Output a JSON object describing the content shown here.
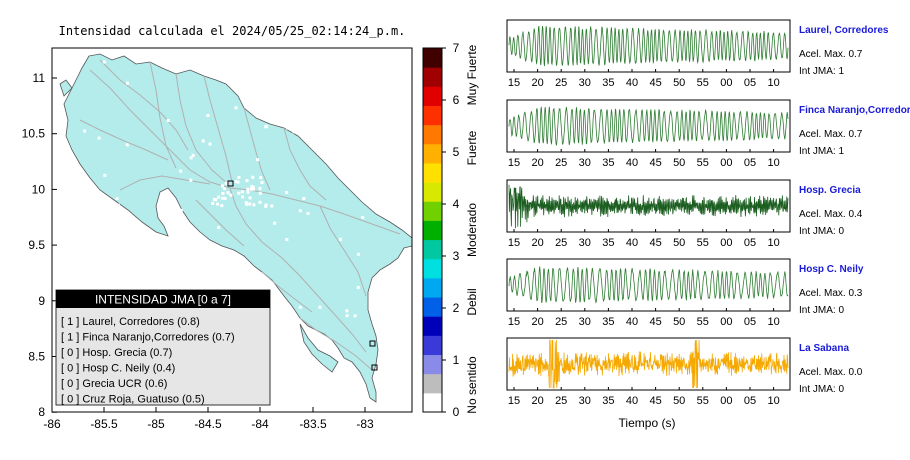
{
  "map": {
    "title": "Intensidad calculada el 2024/05/25_02:14:24_p.m.",
    "x_ticks": [
      "-86",
      "-85.5",
      "-85",
      "-84.5",
      "-84",
      "-83.5",
      "-83"
    ],
    "y_ticks": [
      "11",
      "10.5",
      "10",
      "9.5",
      "9",
      "8.5",
      "8"
    ],
    "land_color": "#b4ecec",
    "legend": {
      "header": "INTENSIDAD JMA [0 a 7]",
      "rows": [
        "[ 1 ]  Laurel, Corredores (0.8)",
        "[ 1 ]  Finca Naranjo,Corredores (0.7)",
        "[ 0 ]  Hosp. Grecia (0.7)",
        "[ 0 ]  Hosp C. Neily (0.4)",
        "[ 0 ]  Grecia UCR (0.6)",
        "[ 0 ]  Cruz Roja, Guatuso (0.5)"
      ]
    }
  },
  "colorbar": {
    "ticks": [
      "0",
      "1",
      "2",
      "3",
      "4",
      "5",
      "6",
      "7"
    ],
    "labels": [
      "No sentido",
      "Debil",
      "Moderado",
      "Fuerte",
      "Muy Fuerte"
    ],
    "colors": [
      "#ffffff",
      "#bdbdbd",
      "#8a8ae8",
      "#3a3ad8",
      "#0000b8",
      "#0060e8",
      "#00a8f0",
      "#00e0e0",
      "#00c8a0",
      "#00b000",
      "#70d000",
      "#d8e800",
      "#ffe000",
      "#ffb000",
      "#ff7800",
      "#ff3000",
      "#e00000",
      "#a00000",
      "#400000"
    ]
  },
  "chart_data": [
    {
      "type": "line",
      "name": "Laurel, Corredores",
      "color": "#2e7d32",
      "x_ticks": [
        "15",
        "20",
        "25",
        "30",
        "35",
        "40",
        "45",
        "50",
        "55",
        "00",
        "05",
        "10"
      ],
      "annotations": {
        "accel": "Acel. Max. 0.7",
        "jma": "Int JMA: 1"
      }
    },
    {
      "type": "line",
      "name": "Finca Naranjo,Corredores",
      "color": "#2e7d32",
      "x_ticks": [
        "15",
        "20",
        "25",
        "30",
        "35",
        "40",
        "45",
        "50",
        "55",
        "00",
        "05",
        "10"
      ],
      "annotations": {
        "accel": "Acel. Max. 0.7",
        "jma": "Int JMA: 1"
      }
    },
    {
      "type": "line",
      "name": "Hosp. Grecia",
      "color": "#1b5e20",
      "x_ticks": [
        "15",
        "20",
        "25",
        "30",
        "35",
        "40",
        "45",
        "50",
        "55",
        "00",
        "05",
        "10"
      ],
      "annotations": {
        "accel": "Acel. Max. 0.4",
        "jma": "Int JMA: 0"
      }
    },
    {
      "type": "line",
      "name": "Hosp C. Neily",
      "color": "#2e7d32",
      "x_ticks": [
        "15",
        "20",
        "25",
        "30",
        "35",
        "40",
        "45",
        "50",
        "55",
        "00",
        "05",
        "10"
      ],
      "annotations": {
        "accel": "Acel. Max. 0.3",
        "jma": "Int JMA: 0"
      }
    },
    {
      "type": "line",
      "name": "La Sabana",
      "color": "#f5a800",
      "x_ticks": [
        "15",
        "20",
        "25",
        "30",
        "35",
        "40",
        "45",
        "50",
        "55",
        "00",
        "05",
        "10"
      ],
      "annotations": {
        "accel": "Acel. Max. 0.0",
        "jma": "Int JMA: 0"
      }
    }
  ],
  "waveforms": {
    "xlabel": "Tiempo (s)"
  }
}
